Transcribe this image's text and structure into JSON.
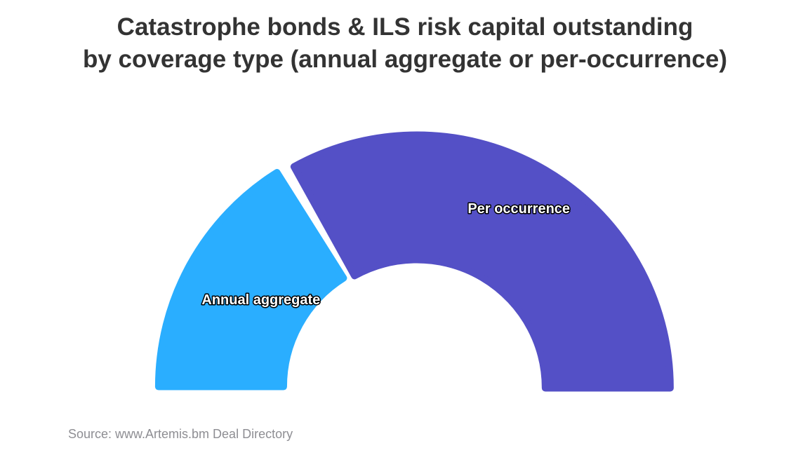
{
  "title": {
    "line1": "Catastrophe bonds & ILS risk capital outstanding",
    "line2": "by coverage type (annual aggregate or per-occurrence)"
  },
  "chart_data": {
    "type": "pie",
    "variant": "semi-donut",
    "title": "Catastrophe bonds & ILS risk capital outstanding by coverage type (annual aggregate or per-occurrence)",
    "legend": "none",
    "slices": [
      {
        "label": "Annual aggregate",
        "share_pct": 33,
        "color": "#2aaeff"
      },
      {
        "label": "Per occurrence",
        "share_pct": 67,
        "color": "#5450c6"
      }
    ]
  },
  "source": "Source: www.Artemis.bm Deal Directory"
}
